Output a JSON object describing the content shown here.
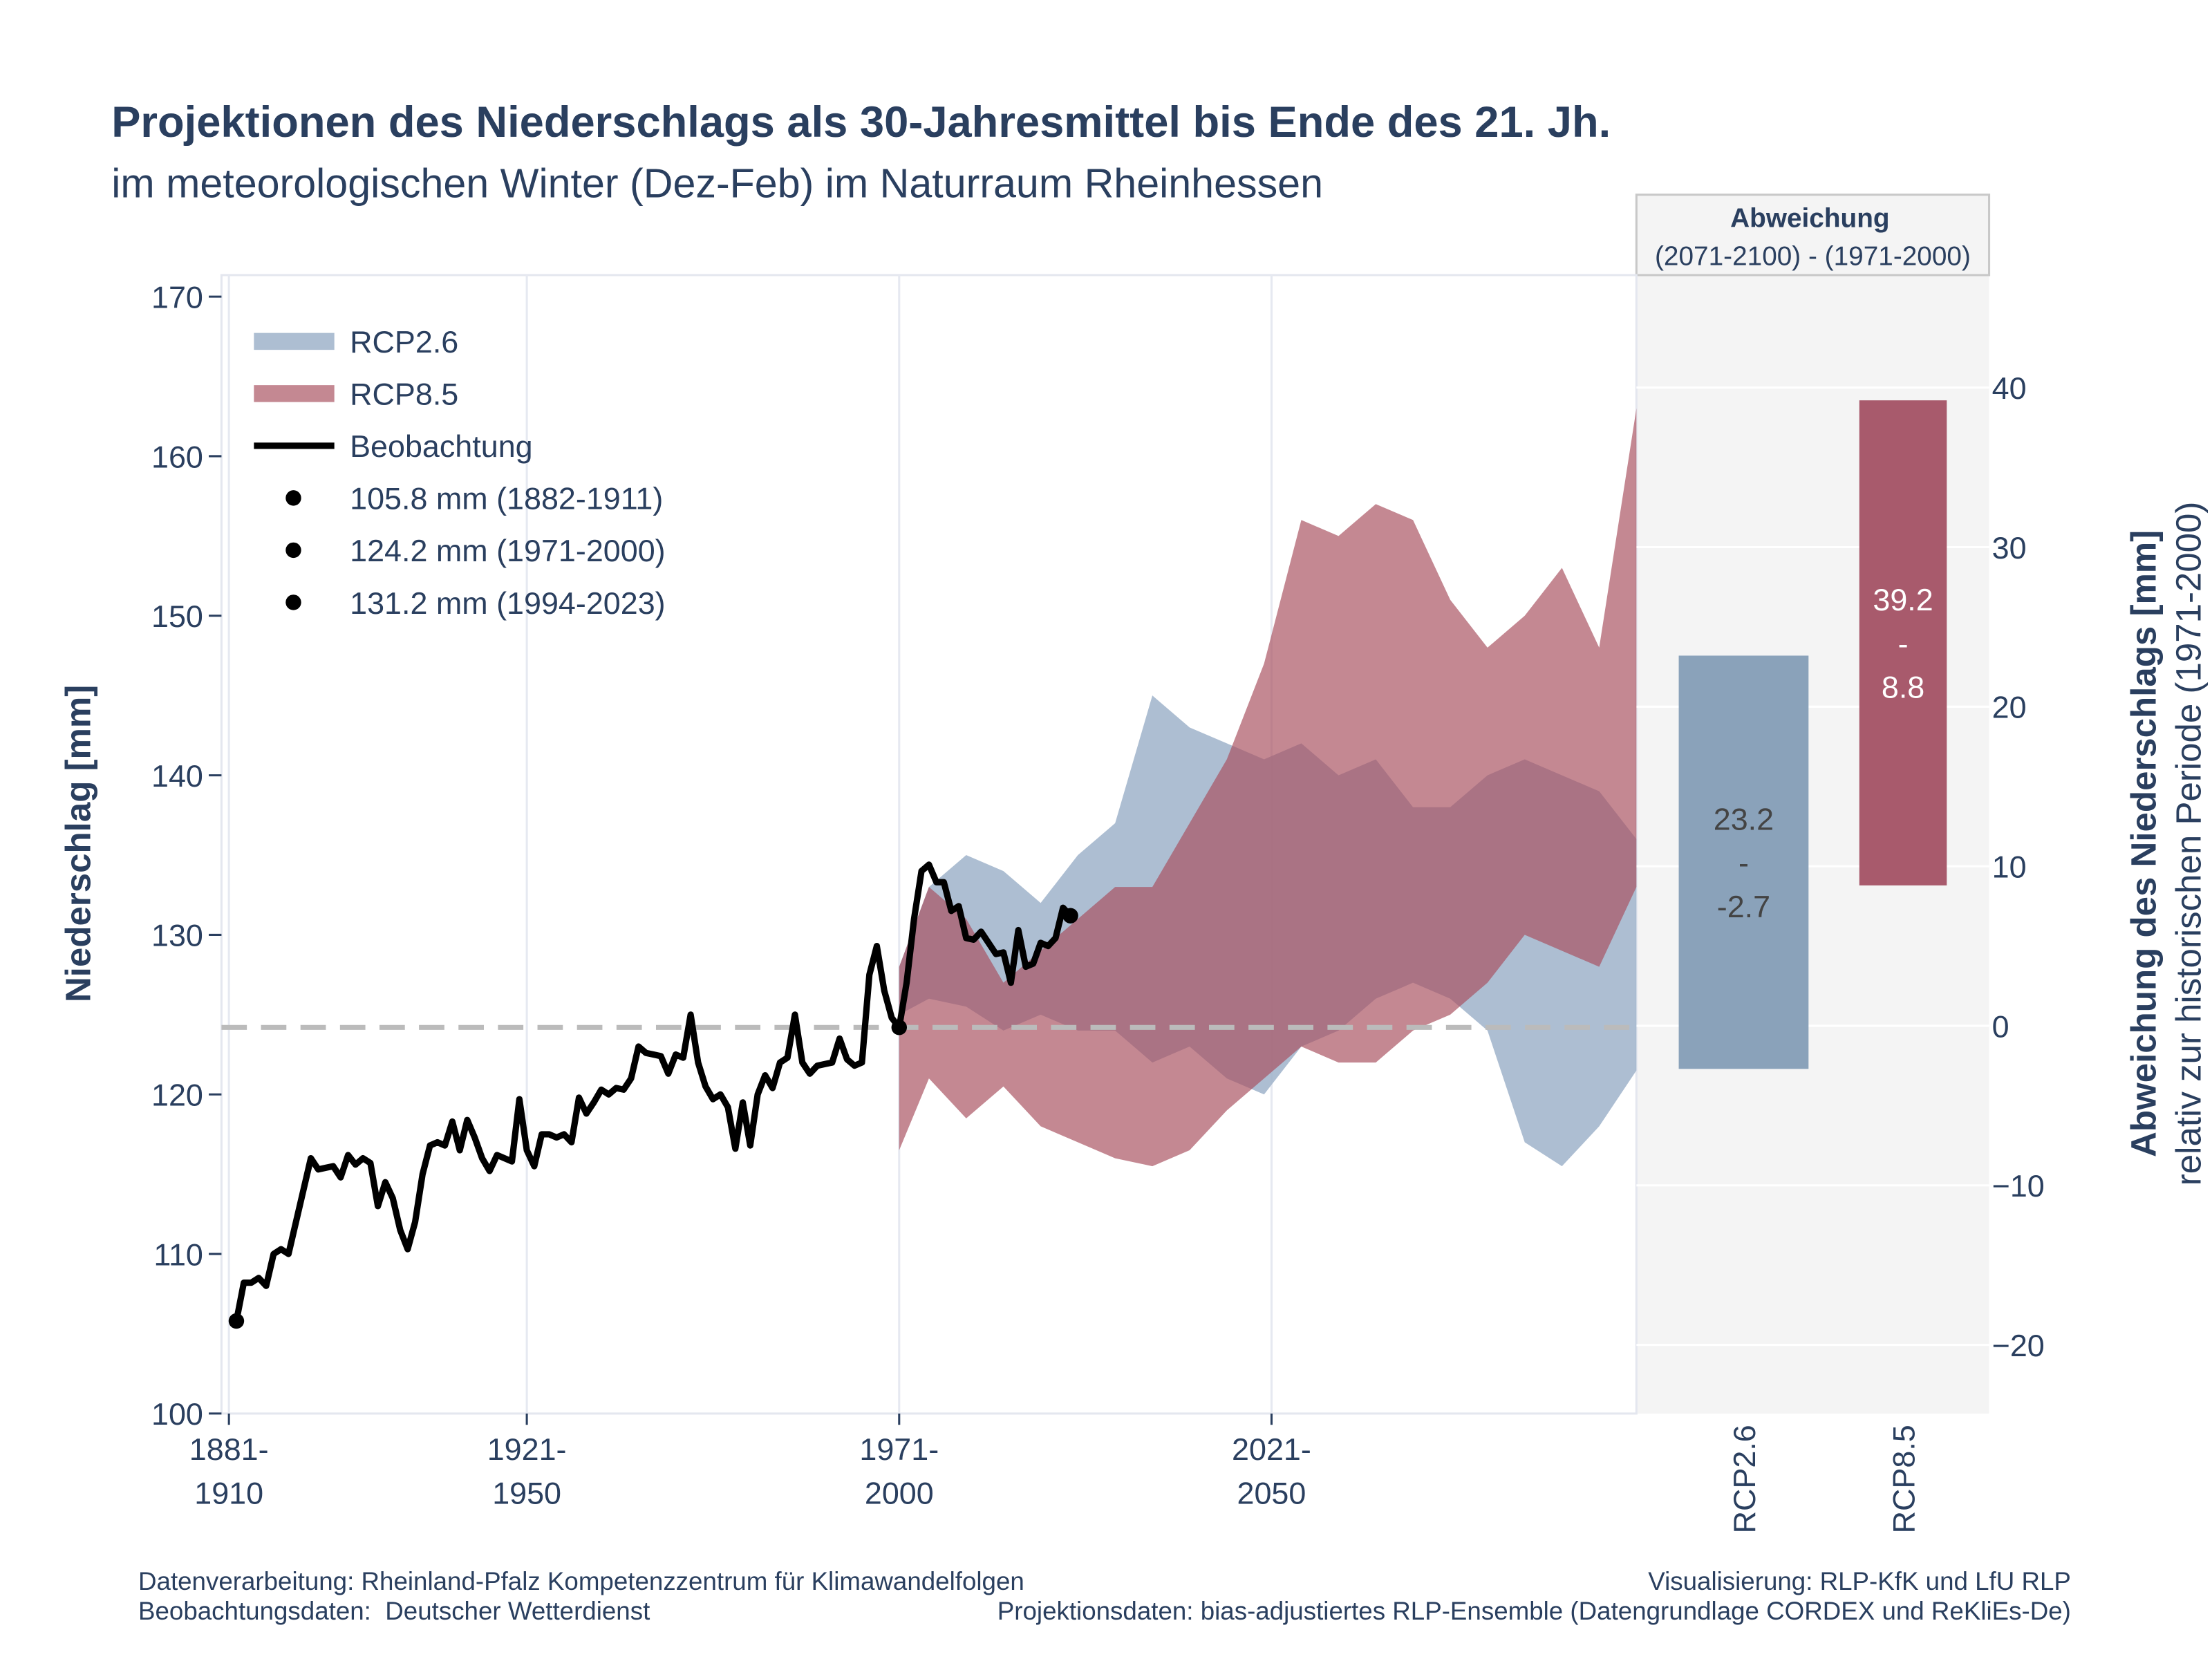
{
  "chart_data": {
    "type": "band_line",
    "title": "Projektionen des Niederschlags als 30-Jahresmittel bis Ende des 21. Jh.",
    "subtitle": "im meteorologischen Winter (Dez-Feb) im Naturraum Rheinhessen",
    "y_label": "Niederschlag [mm]",
    "y2_label": "Abweichung des Niederschlags [mm]",
    "y2_sublabel": "relativ zur historischen Periode (1971-2000)",
    "xlim": [
      1880,
      2070
    ],
    "xticks": [
      {
        "value": 1881,
        "label": [
          "1881-",
          "1910"
        ]
      },
      {
        "value": 1921,
        "label": [
          "1921-",
          "1950"
        ]
      },
      {
        "value": 1971,
        "label": [
          "1971-",
          "2000"
        ]
      },
      {
        "value": 2021,
        "label": [
          "2021-",
          "2050"
        ]
      }
    ],
    "ylim": [
      100,
      171.35
    ],
    "yticks": [
      100,
      110,
      120,
      130,
      140,
      150,
      160,
      170
    ],
    "y2lim": [
      -24.3,
      47.05
    ],
    "y2ticks": [
      {
        "value": -20,
        "label": "−20"
      },
      {
        "value": -10,
        "label": "−10"
      },
      0,
      10,
      20,
      30,
      40
    ],
    "grid": true,
    "legend": "top-left",
    "reference_value": 124.2,
    "bands": [
      {
        "name": "RCP2.6",
        "color": "#9fb3ca",
        "x": [
          1971,
          1975,
          1980,
          1985,
          1990,
          1995,
          2000,
          2005,
          2010,
          2015,
          2020,
          2025,
          2030,
          2035,
          2040,
          2045,
          2050,
          2055,
          2060,
          2065,
          2070
        ],
        "upper": [
          128,
          133,
          135,
          134,
          132,
          135,
          137,
          145,
          143,
          142,
          141,
          142,
          140,
          141,
          138,
          138,
          140,
          141,
          140,
          139,
          136
        ],
        "lower": [
          125,
          126,
          125.5,
          124,
          125,
          124,
          124,
          122,
          123,
          121,
          120,
          123,
          124,
          126,
          127,
          126,
          124,
          117,
          115.5,
          118,
          121.5
        ]
      },
      {
        "name": "RCP8.5",
        "color": "#a8505f",
        "x": [
          1971,
          1975,
          1980,
          1985,
          1990,
          1995,
          2000,
          2005,
          2010,
          2015,
          2020,
          2025,
          2030,
          2035,
          2040,
          2045,
          2050,
          2055,
          2060,
          2065,
          2070
        ],
        "upper": [
          128,
          133,
          131,
          127,
          129,
          131,
          133,
          133,
          137,
          141,
          147,
          156,
          155,
          157,
          156,
          151,
          148,
          150,
          153,
          148,
          163
        ],
        "lower": [
          116.5,
          121,
          118.5,
          120.5,
          118,
          117,
          116,
          115.5,
          116.5,
          119,
          121,
          123,
          122,
          122,
          124,
          125,
          127,
          130,
          129,
          128,
          133
        ]
      }
    ],
    "series": [
      {
        "name": "Beobachtung",
        "color": "#000000",
        "x": [
          1882,
          1883,
          1884,
          1885,
          1886,
          1887,
          1888,
          1889,
          1890,
          1891,
          1892,
          1893,
          1894,
          1895,
          1896,
          1897,
          1898,
          1899,
          1900,
          1901,
          1902,
          1903,
          1904,
          1905,
          1906,
          1907,
          1908,
          1909,
          1910,
          1911,
          1912,
          1913,
          1914,
          1915,
          1916,
          1917,
          1918,
          1919,
          1920,
          1921,
          1922,
          1923,
          1924,
          1925,
          1926,
          1927,
          1928,
          1929,
          1930,
          1931,
          1932,
          1933,
          1934,
          1935,
          1936,
          1937,
          1938,
          1939,
          1940,
          1941,
          1942,
          1943,
          1944,
          1945,
          1946,
          1947,
          1948,
          1949,
          1950,
          1951,
          1952,
          1953,
          1954,
          1955,
          1956,
          1957,
          1958,
          1959,
          1960,
          1961,
          1962,
          1963,
          1964,
          1965,
          1966,
          1967,
          1968,
          1969,
          1970,
          1971,
          1972,
          1973,
          1974,
          1975,
          1976,
          1977,
          1978,
          1979,
          1980,
          1981,
          1982,
          1983,
          1984,
          1985,
          1986,
          1987,
          1988,
          1989,
          1990,
          1991,
          1992,
          1993,
          1994
        ],
        "values": [
          105.8,
          108.2,
          108.2,
          108.5,
          108,
          110,
          110.3,
          110,
          112,
          114,
          116,
          115.3,
          115.4,
          115.5,
          114.8,
          116.2,
          115.6,
          116,
          115.7,
          113,
          114.5,
          113.5,
          111.5,
          110.3,
          112,
          115,
          116.8,
          117,
          116.8,
          118.3,
          116.5,
          118.4,
          117.3,
          116,
          115.2,
          116.2,
          116,
          115.8,
          119.7,
          116.5,
          115.5,
          117.5,
          117.5,
          117.3,
          117.5,
          117,
          119.8,
          118.8,
          119.5,
          120.3,
          120,
          120.4,
          120.3,
          121,
          123,
          122.6,
          122.5,
          122.4,
          121.3,
          122.5,
          122.3,
          125,
          122,
          120.5,
          119.7,
          120,
          119.2,
          116.6,
          119.5,
          116.8,
          120,
          121.2,
          120.4,
          122,
          122.3,
          125,
          122,
          121.3,
          121.8,
          121.9,
          122,
          123.5,
          122.2,
          121.8,
          122,
          127.5,
          129.3,
          126.5,
          124.8,
          124.2,
          127,
          131,
          134,
          134.4,
          133.3,
          133.3,
          131.5,
          131.8,
          129.8,
          129.7,
          130.2,
          129.5,
          128.8,
          128.9,
          127,
          130.3,
          128,
          128.2,
          129.5,
          129.3,
          129.8,
          131.7,
          131.2
        ]
      }
    ],
    "markers": [
      {
        "label": "105.8 mm (1882-1911)",
        "x": 1882,
        "value": 105.8
      },
      {
        "label": "124.2 mm (1971-2000)",
        "x": 1971,
        "value": 124.2
      },
      {
        "label": "131.2 mm (1994-2023)",
        "x": 1994,
        "value": 131.2
      }
    ],
    "bar_panel": {
      "title": "Abweichung",
      "subtitle": "(2071-2100) - (1971-2000)",
      "range_separator": "-",
      "bars": [
        {
          "name": "RCP2.6",
          "low": -2.7,
          "high": 23.2,
          "color": "#8aa2ba"
        },
        {
          "name": "RCP8.5",
          "low": 8.8,
          "high": 39.2,
          "color": "#a85a6c"
        }
      ]
    },
    "footer": {
      "left": [
        "Datenverarbeitung: Rheinland-Pfalz Kompetenzzentrum für Klimawandelfolgen",
        "Beobachtungsdaten:  Deutscher Wetterdienst"
      ],
      "right": [
        "Visualisierung: RLP-KfK und LfU RLP",
        "Projektionsdaten: bias-adjustiertes RLP-Ensemble (Datengrundlage CORDEX und ReKliEs-De)"
      ]
    }
  }
}
